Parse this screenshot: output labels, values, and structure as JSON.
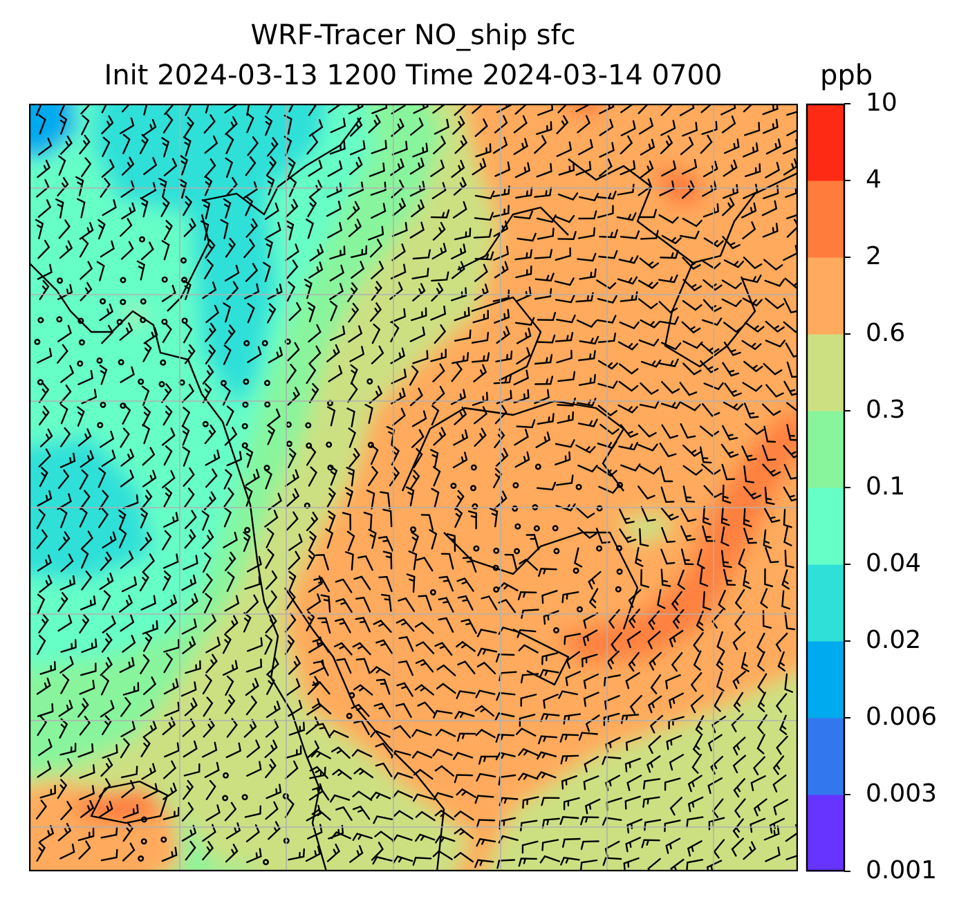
{
  "title": {
    "line1": "WRF-Tracer NO_ship sfc",
    "line2": "Init 2024-03-13 1200 Time 2024-03-14 0700",
    "unit": "ppb"
  },
  "colorbar": {
    "levels": [
      "0.001",
      "0.003",
      "0.006",
      "0.02",
      "0.04",
      "0.1",
      "0.3",
      "0.6",
      "2",
      "4",
      "10"
    ],
    "colors": [
      "#6633ff",
      "#3377ee",
      "#00aaee",
      "#2ee0d8",
      "#66ffc8",
      "#88f59c",
      "#cce082",
      "#ffaa5c",
      "#ff7c3c",
      "#ff2a14"
    ]
  },
  "map": {
    "grid": "on",
    "features": [
      "coastlines",
      "wind-barbs",
      "tracer-concentration-fill"
    ]
  }
}
